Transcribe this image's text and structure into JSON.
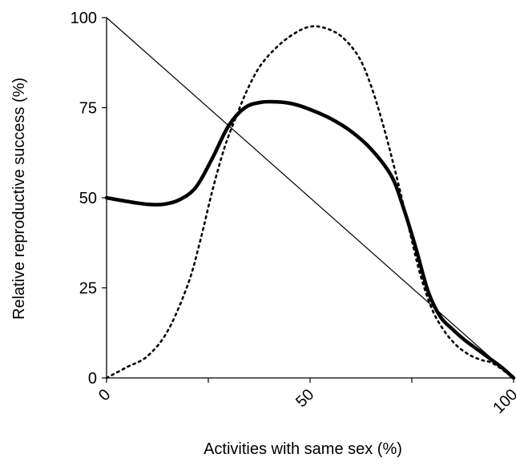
{
  "chart_data": {
    "type": "line",
    "title": "",
    "xlabel": "Activities with same sex (%)",
    "ylabel": "Relative reproductive success (%)",
    "xlim": [
      0,
      100
    ],
    "ylim": [
      0,
      100
    ],
    "x_ticks": [
      0,
      25,
      50,
      75,
      100
    ],
    "x_tick_labels": [
      "0",
      "50",
      "100"
    ],
    "x_tick_label_positions": [
      0,
      50,
      100
    ],
    "x_tick_label_rotation": "diagonal",
    "y_ticks": [
      0,
      25,
      50,
      75,
      100
    ],
    "y_tick_labels": [
      "0",
      "25",
      "50",
      "75",
      "100"
    ],
    "grid": false,
    "legend": "none",
    "series": [
      {
        "style": "thin-solid",
        "color": "#000000",
        "x": [
          0,
          100
        ],
        "y": [
          100,
          0
        ]
      },
      {
        "style": "thick-solid",
        "color": "#000000",
        "x": [
          0,
          5,
          10,
          14,
          18,
          22,
          26,
          30,
          34,
          38,
          42,
          46,
          50,
          55,
          60,
          65,
          70,
          73,
          76,
          79,
          82,
          85,
          88,
          91,
          94,
          97,
          100
        ],
        "y": [
          50,
          49,
          48.2,
          48.2,
          49.5,
          53,
          61,
          70,
          75,
          76.5,
          76.6,
          76,
          74.5,
          72,
          68.5,
          63.5,
          56,
          47,
          36,
          24,
          17,
          13.5,
          10.5,
          8,
          5.5,
          3,
          0
        ]
      },
      {
        "style": "dotted",
        "color": "#000000",
        "x": [
          0,
          5,
          10,
          15,
          20,
          23,
          26,
          29,
          32,
          35,
          38,
          42,
          46,
          50,
          54,
          58,
          62,
          65,
          68,
          71,
          74,
          77,
          80,
          83,
          86,
          89,
          92,
          95,
          100
        ],
        "y": [
          0,
          3,
          6,
          13,
          26,
          38,
          52,
          64,
          73,
          81,
          87,
          92,
          95.5,
          97.5,
          97,
          94.5,
          89,
          81,
          70,
          57,
          43,
          29,
          19,
          13,
          9,
          6.5,
          5,
          4,
          0
        ]
      }
    ]
  }
}
